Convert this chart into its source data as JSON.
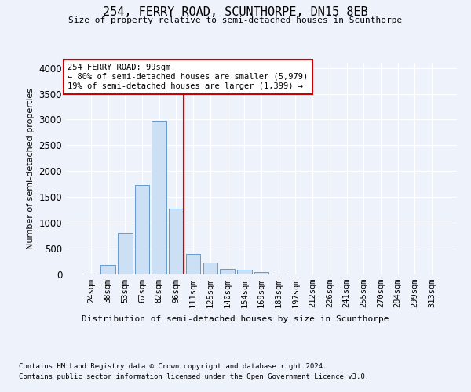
{
  "title1": "254, FERRY ROAD, SCUNTHORPE, DN15 8EB",
  "title2": "Size of property relative to semi-detached houses in Scunthorpe",
  "xlabel": "Distribution of semi-detached houses by size in Scunthorpe",
  "ylabel": "Number of semi-detached properties",
  "categories": [
    "24sqm",
    "38sqm",
    "53sqm",
    "67sqm",
    "82sqm",
    "96sqm",
    "111sqm",
    "125sqm",
    "140sqm",
    "154sqm",
    "169sqm",
    "183sqm",
    "197sqm",
    "212sqm",
    "226sqm",
    "241sqm",
    "255sqm",
    "270sqm",
    "284sqm",
    "299sqm",
    "313sqm"
  ],
  "values": [
    10,
    180,
    800,
    1730,
    2970,
    1280,
    390,
    230,
    110,
    90,
    40,
    10,
    5,
    2,
    2,
    1,
    1,
    1,
    1,
    1,
    1
  ],
  "bar_color": "#cce0f5",
  "bar_edge_color": "#6699cc",
  "vline_x": 5.45,
  "vline_color": "#cc0000",
  "ylim": [
    0,
    4100
  ],
  "yticks": [
    0,
    500,
    1000,
    1500,
    2000,
    2500,
    3000,
    3500,
    4000
  ],
  "annotation_title": "254 FERRY ROAD: 99sqm",
  "annotation_line1": "← 80% of semi-detached houses are smaller (5,979)",
  "annotation_line2": "19% of semi-detached houses are larger (1,399) →",
  "annotation_box_color": "#ffffff",
  "annotation_box_edgecolor": "#cc0000",
  "footer1": "Contains HM Land Registry data © Crown copyright and database right 2024.",
  "footer2": "Contains public sector information licensed under the Open Government Licence v3.0.",
  "bg_color": "#eef2fb",
  "plot_bg_color": "#eef2fb"
}
